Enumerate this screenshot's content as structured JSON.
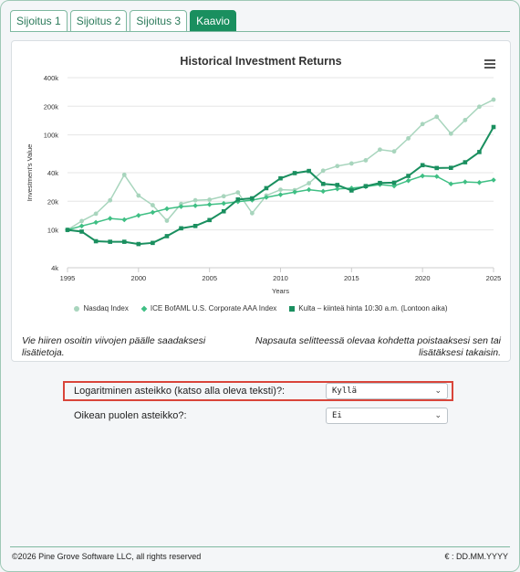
{
  "tabs": [
    "Sijoitus 1",
    "Sijoitus 2",
    "Sijoitus 3",
    "Kaavio"
  ],
  "active_tab": 3,
  "colors": {
    "accent": "#1a8f5f",
    "nasdaq": "#a8d5bd",
    "ice": "#3fbf84",
    "gold": "#1a8f5f",
    "highlight": "#d9453a"
  },
  "chart": {
    "menu_icon": "hamburger-menu-icon",
    "note_left": "Vie hiiren osoitin viivojen päälle saadaksesi lisätietoja.",
    "note_right": "Napsauta selitteessä olevaa kohdetta poistaaksesi sen tai lisätäksesi takaisin."
  },
  "chart_data": {
    "type": "line",
    "title": "Historical Investment Returns",
    "xlabel": "Years",
    "ylabel": "Investment's Value",
    "ylog": true,
    "ylim": [
      4000,
      400000
    ],
    "xlim": [
      1995,
      2025
    ],
    "yticks": [
      4000,
      10000,
      20000,
      40000,
      100000,
      200000,
      400000
    ],
    "ytick_labels": [
      "4k",
      "10k",
      "20k",
      "40k",
      "100k",
      "200k",
      "400k"
    ],
    "xticks": [
      1995,
      2000,
      2005,
      2010,
      2015,
      2020,
      2025
    ],
    "x": [
      1995,
      1996,
      1997,
      1998,
      1999,
      2000,
      2001,
      2002,
      2003,
      2004,
      2005,
      2006,
      2007,
      2008,
      2009,
      2010,
      2011,
      2012,
      2013,
      2014,
      2015,
      2016,
      2017,
      2018,
      2019,
      2020,
      2021,
      2022,
      2023,
      2024,
      2025
    ],
    "series": [
      {
        "name": "Nasdaq Index",
        "marker": "circle",
        "values": [
          10000,
          12400,
          14800,
          20500,
          38000,
          23000,
          18200,
          12500,
          18800,
          20500,
          20800,
          22600,
          24800,
          15000,
          23000,
          26500,
          26200,
          31000,
          42000,
          47000,
          50000,
          54000,
          70000,
          67000,
          92000,
          130000,
          155000,
          103000,
          143000,
          198000,
          235000
        ]
      },
      {
        "name": "ICE BofAML U.S. Corporate AAA Index",
        "marker": "diamond",
        "values": [
          10000,
          11000,
          12000,
          13200,
          12800,
          14200,
          15300,
          16700,
          17600,
          18000,
          18500,
          19000,
          19800,
          20600,
          22000,
          23500,
          25000,
          26500,
          25500,
          27000,
          27500,
          28500,
          30000,
          29000,
          33000,
          37000,
          36500,
          30500,
          32000,
          31500,
          33500
        ]
      },
      {
        "name": "Kulta – kiinteä hinta 10:30 a.m. (Lontoon aika)",
        "marker": "square",
        "values": [
          10000,
          9600,
          7600,
          7500,
          7500,
          7100,
          7300,
          8600,
          10400,
          11000,
          12700,
          15700,
          20900,
          21500,
          27500,
          34900,
          39600,
          41700,
          30500,
          29700,
          26000,
          28900,
          31200,
          31400,
          37000,
          48000,
          44800,
          45000,
          51500,
          66000,
          121000
        ]
      }
    ]
  },
  "form": {
    "log_label": "Logaritminen asteikko (katso alla oleva teksti)?:",
    "log_value": "Kyllä",
    "right_label": "Oikean puolen asteikko?:",
    "right_value": "Ei"
  },
  "footer": {
    "copyright": "©2026 Pine Grove Software LLC, all rights reserved",
    "date_format": "€ : DD.MM.YYYY"
  }
}
